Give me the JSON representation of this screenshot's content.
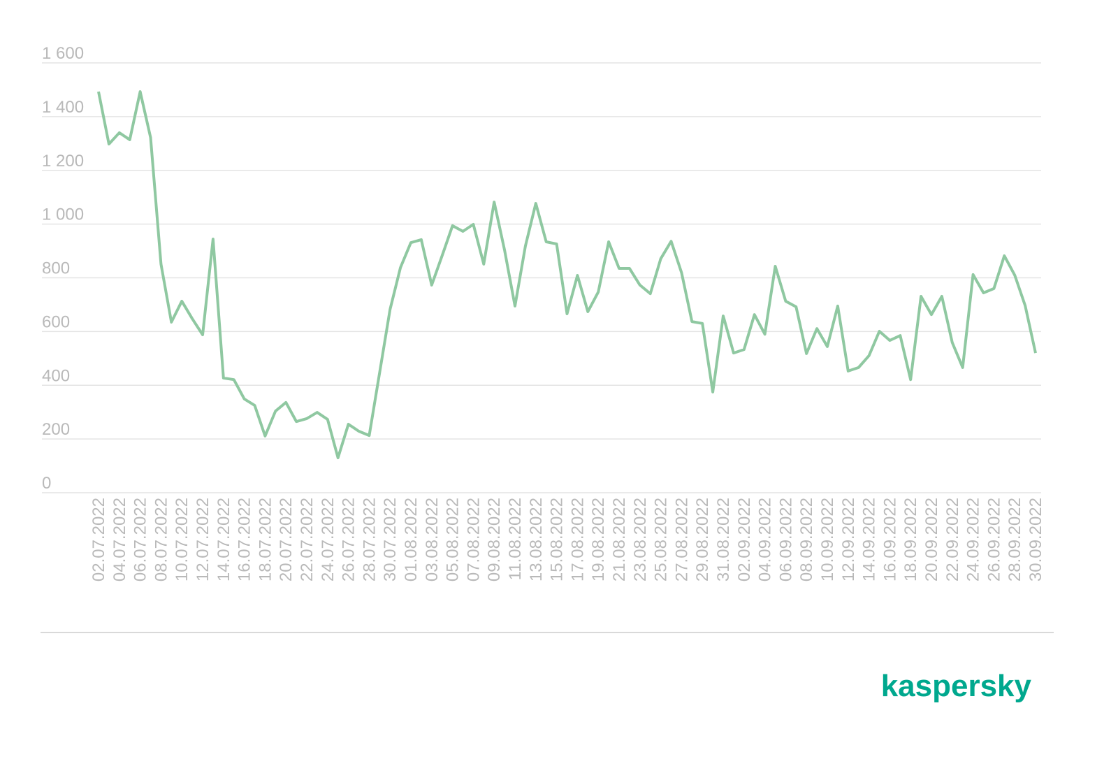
{
  "chart_data": {
    "type": "line",
    "categories": [
      "02.07.2022",
      null,
      "04.07.2022",
      null,
      "06.07.2022",
      null,
      "08.07.2022",
      null,
      "10.07.2022",
      null,
      "12.07.2022",
      null,
      "14.07.2022",
      null,
      "16.07.2022",
      null,
      "18.07.2022",
      null,
      "20.07.2022",
      null,
      "22.07.2022",
      null,
      "24.07.2022",
      null,
      "26.07.2022",
      null,
      "28.07.2022",
      null,
      "30.07.2022",
      null,
      "01.08.2022",
      null,
      "03.08.2022",
      null,
      "05.08.2022",
      null,
      "07.08.2022",
      null,
      "09.08.2022",
      null,
      "11.08.2022",
      null,
      "13.08.2022",
      null,
      "15.08.2022",
      null,
      "17.08.2022",
      null,
      "19.08.2022",
      null,
      "21.08.2022",
      null,
      "23.08.2022",
      null,
      "25.08.2022",
      null,
      "27.08.2022",
      null,
      "29.08.2022",
      null,
      "31.08.2022",
      null,
      "02.09.2022",
      null,
      "04.09.2022",
      null,
      "06.09.2022",
      null,
      "08.09.2022",
      null,
      "10.09.2022",
      null,
      "12.09.2022",
      null,
      "14.09.2022",
      null,
      "16.09.2022",
      null,
      "18.09.2022",
      null,
      "20.09.2022",
      null,
      "22.09.2022",
      null,
      "24.09.2022",
      null,
      "26.09.2022",
      null,
      "28.09.2022",
      null,
      "30.09.2022"
    ],
    "series": [
      {
        "name": null,
        "color": "#8fc8a1",
        "values": [
          1493,
          1298,
          1340,
          1314,
          1493,
          1322,
          851,
          635,
          713,
          648,
          588,
          944,
          427,
          421,
          349,
          325,
          211,
          304,
          336,
          265,
          276,
          299,
          273,
          130,
          255,
          229,
          213,
          447,
          682,
          838,
          931,
          942,
          773,
          882,
          994,
          973,
          999,
          851,
          1082,
          903,
          695,
          918,
          1077,
          934,
          926,
          666,
          809,
          674,
          747,
          934,
          835,
          835,
          773,
          741,
          871,
          936,
          819,
          637,
          630,
          375,
          658,
          520,
          533,
          663,
          590,
          843,
          713,
          692,
          518,
          611,
          544,
          695,
          453,
          466,
          510,
          601,
          567,
          585,
          421,
          731,
          663,
          731,
          559,
          466,
          812,
          744,
          760,
          882,
          810,
          697,
          520
        ]
      }
    ],
    "ylim": [
      0,
      1600
    ],
    "yticks": [
      0,
      200,
      400,
      600,
      800,
      {
        "value": 1000,
        "label": "1 000"
      },
      {
        "value": 1200,
        "label": "1 200"
      },
      {
        "value": 1400,
        "label": "1 400"
      },
      {
        "value": 1600,
        "label": "1 600"
      }
    ],
    "grid": true,
    "logo": "kaspersky"
  }
}
